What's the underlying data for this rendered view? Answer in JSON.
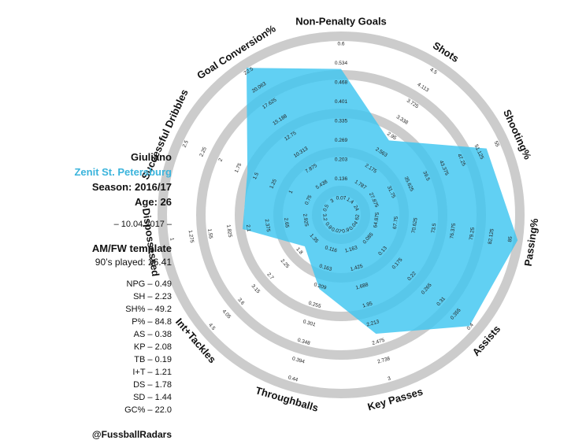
{
  "player": {
    "name": "Giuliano",
    "team": "Zenit St. Petersburg",
    "season": "Season: 2016/17",
    "age": "Age: 26",
    "date": "– 10.04.2017 –",
    "template": "AM/FW template",
    "minutes": "90’s played: 26.41"
  },
  "stats_list": [
    "NPG – 0.49",
    "SH – 2.23",
    "SH% – 49.2",
    "P% – 84.8",
    "AS – 0.38",
    "KP – 2.08",
    "TB – 0.19",
    "I+T – 1.21",
    "DS – 1.78",
    "SD – 1.44",
    "GC% – 22.0"
  ],
  "credit": "@FussballRadars",
  "colors": {
    "fill": "#3ec6f0",
    "ring": "#cccccc",
    "accent": "#3bb4dc"
  },
  "chart_data": {
    "type": "radar",
    "title": "",
    "axes": [
      {
        "label": "Non-Penalty Goals",
        "min": 0,
        "max": 0.6,
        "value": 0.49,
        "ticks": [
          "0.07",
          "0.136",
          "0.203",
          "0.269",
          "0.335",
          "0.401",
          "0.468",
          "0.534",
          "0.6"
        ]
      },
      {
        "label": "Shots",
        "min": 0,
        "max": 4.5,
        "value": 2.23,
        "ticks": [
          "1.4",
          "1.787",
          "2.175",
          "2.563",
          "2.95",
          "3.338",
          "3.725",
          "4.113",
          "4.5"
        ]
      },
      {
        "label": "Shooting%",
        "min": 0,
        "max": 55,
        "value": 49.2,
        "ticks": [
          "24",
          "27.875",
          "31.75",
          "35.625",
          "39.5",
          "43.375",
          "47.25",
          "51.125",
          "55"
        ]
      },
      {
        "label": "Passing%",
        "min": 0,
        "max": 85,
        "value": 84.8,
        "ticks": [
          "62",
          "64.875",
          "67.75",
          "70.625",
          "73.5",
          "76.375",
          "79.25",
          "82.125",
          "85"
        ]
      },
      {
        "label": "Assists",
        "min": 0,
        "max": 0.4,
        "value": 0.38,
        "ticks": [
          "0.04",
          "0.085",
          "0.13",
          "0.175",
          "0.22",
          "0.265",
          "0.31",
          "0.355",
          "0.4"
        ]
      },
      {
        "label": "Key Passes",
        "min": 0,
        "max": 3,
        "value": 2.08,
        "ticks": [
          "0.9",
          "1.163",
          "1.425",
          "1.688",
          "1.95",
          "2.213",
          "2.475",
          "2.738",
          "3"
        ]
      },
      {
        "label": "Throughballs",
        "min": 0,
        "max": 0.44,
        "value": 0.19,
        "ticks": [
          "0.07",
          "0.116",
          "0.163",
          "0.209",
          "0.255",
          "0.301",
          "0.348",
          "0.394",
          "0.44"
        ]
      },
      {
        "label": "Int+Tackles",
        "min": 0,
        "max": 4.5,
        "value": 1.21,
        "ticks": [
          "0.9",
          "1.35",
          "1.8",
          "2.25",
          "2.7",
          "3.15",
          "3.6",
          "4.05",
          "4.5"
        ]
      },
      {
        "label": "Dispossessed",
        "min": 0,
        "max": 3.2,
        "value": 1.78,
        "ticks": [
          "3.2",
          "2.925",
          "2.65",
          "2.375",
          "2.1",
          "1.825",
          "1.55",
          "1.275",
          "1"
        ]
      },
      {
        "label": "Successful Dribbles",
        "min": 0,
        "max": 2.5,
        "value": 1.44,
        "ticks": [
          "0.5",
          "0.75",
          "1",
          "1.25",
          "1.5",
          "1.75",
          "2",
          "2.25",
          "2.5"
        ]
      },
      {
        "label": "Goal Conversion%",
        "min": 0,
        "max": 22.5,
        "value": 22.0,
        "ticks": [
          "3",
          "5.438",
          "7.875",
          "10.313",
          "12.75",
          "15.188",
          "17.625",
          "20.063",
          "22.5"
        ]
      }
    ],
    "legend": "none"
  }
}
